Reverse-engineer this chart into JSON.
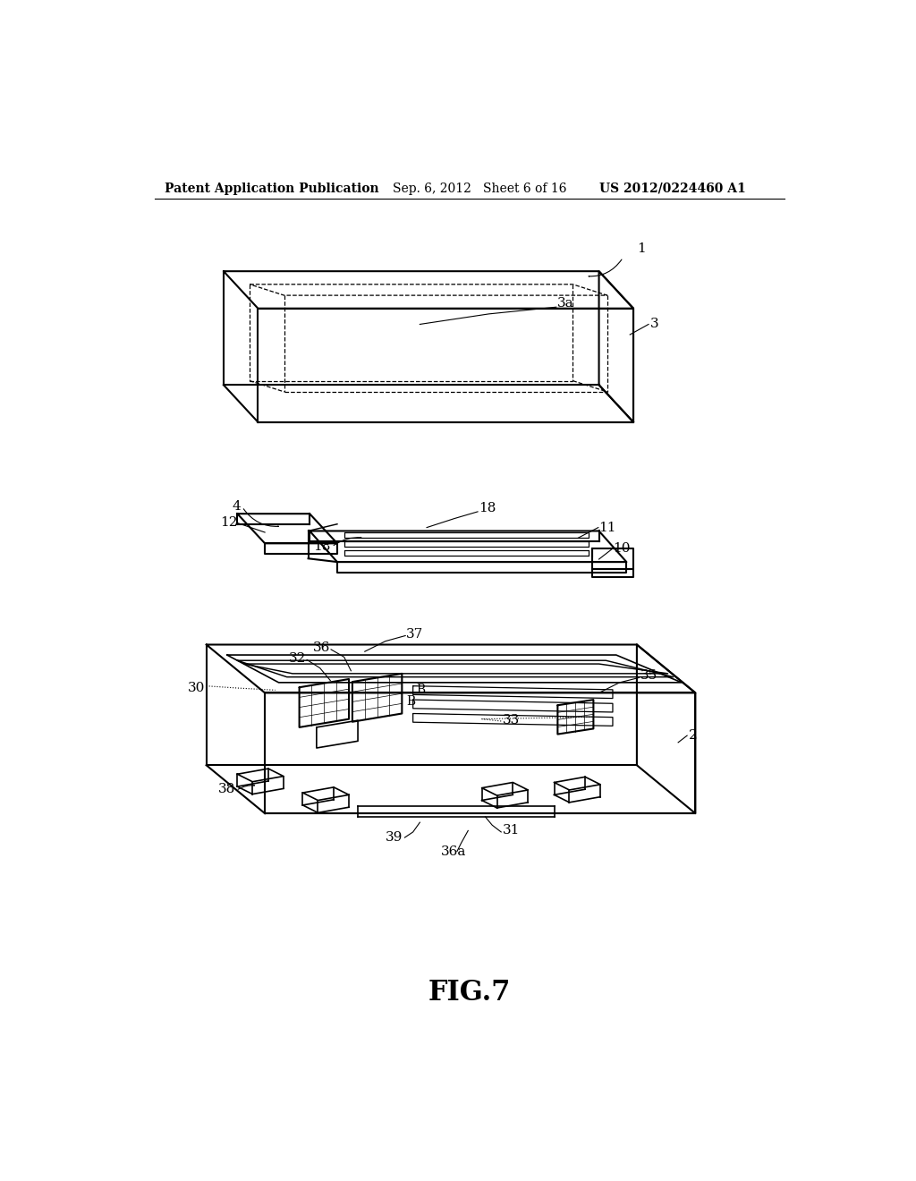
{
  "background_color": "#ffffff",
  "header_left": "Patent Application Publication",
  "header_center": "Sep. 6, 2012   Sheet 6 of 16",
  "header_right": "US 2012/0224460 A1",
  "figure_label": "FIG.7",
  "line_color": "#000000",
  "line_width": 1.5
}
